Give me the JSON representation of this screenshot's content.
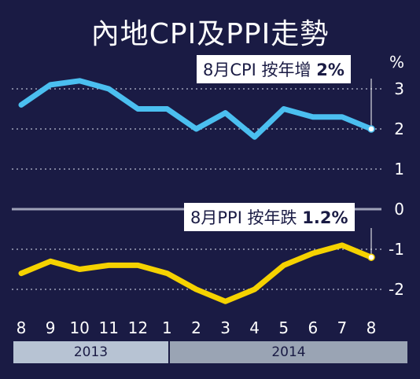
{
  "title": "內地CPI及PPI走勢",
  "chart_data": {
    "type": "line",
    "x": [
      "8",
      "9",
      "10",
      "11",
      "12",
      "1",
      "2",
      "3",
      "4",
      "5",
      "6",
      "7",
      "8"
    ],
    "years": [
      {
        "label": "2013",
        "from": 0,
        "to": 4
      },
      {
        "label": "2014",
        "from": 5,
        "to": 12
      }
    ],
    "ylabel": "%",
    "yticks": [
      3,
      2,
      1,
      0,
      -1,
      -2
    ],
    "ylim": [
      -2.4,
      3.5
    ],
    "series": [
      {
        "name": "CPI",
        "color": "#4bbff0",
        "values": [
          2.6,
          3.1,
          3.2,
          3.0,
          2.5,
          2.5,
          2.0,
          2.4,
          1.8,
          2.5,
          2.3,
          2.3,
          2.0
        ]
      },
      {
        "name": "PPI",
        "color": "#f5d200",
        "values": [
          -1.6,
          -1.3,
          -1.5,
          -1.4,
          -1.4,
          -1.6,
          -2.0,
          -2.3,
          -2.0,
          -1.4,
          -1.1,
          -0.9,
          -1.2
        ]
      }
    ],
    "annotations": [
      {
        "series": "CPI",
        "text_pre": "8月CPI 按年增",
        "value": "2%"
      },
      {
        "series": "PPI",
        "text_pre": "8月PPI 按年跌",
        "value": "1.2%"
      }
    ]
  }
}
